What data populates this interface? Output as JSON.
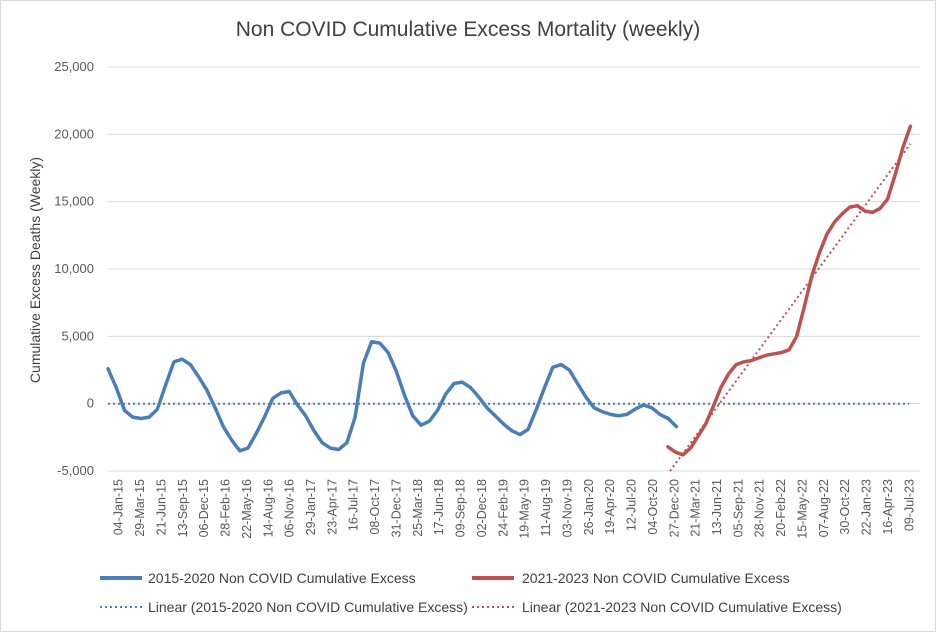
{
  "chart_data": {
    "type": "line",
    "title": "Non COVID Cumulative Excess Mortality  (weekly)",
    "xlabel": "",
    "ylabel": "Cumulative Excess Deaths (Weekly)",
    "ylim": [
      -5000,
      25000
    ],
    "y_ticks": [
      "25,000",
      "20,000",
      "15,000",
      "10,000",
      "5,000",
      "0",
      "-5,000"
    ],
    "y_tick_values": [
      25000,
      20000,
      15000,
      10000,
      5000,
      0,
      -5000
    ],
    "x_ticks": [
      "04-Jan-15",
      "29-Mar-15",
      "21-Jun-15",
      "13-Sep-15",
      "06-Dec-15",
      "28-Feb-16",
      "22-May-16",
      "14-Aug-16",
      "06-Nov-16",
      "29-Jan-17",
      "23-Apr-17",
      "16-Jul-17",
      "08-Oct-17",
      "31-Dec-17",
      "25-Mar-18",
      "17-Jun-18",
      "09-Sep-18",
      "02-Dec-18",
      "24-Feb-19",
      "19-May-19",
      "11-Aug-19",
      "03-Nov-19",
      "26-Jan-20",
      "19-Apr-20",
      "12-Jul-20",
      "04-Oct-20",
      "27-Dec-20",
      "21-Mar-21",
      "13-Jun-21",
      "05-Sep-21",
      "28-Nov-21",
      "20-Feb-22",
      "15-May-22",
      "07-Aug-22",
      "30-Oct-22",
      "22-Jan-23",
      "16-Apr-23",
      "09-Jul-23"
    ],
    "grid": "horizontal",
    "legend": "bottom",
    "series": [
      {
        "name": "2015-2020 Non COVID Cumulative Excess",
        "color": "#4a7ebb",
        "style": "solid",
        "values": [
          2600,
          1200,
          -500,
          -1000,
          -1100,
          -1000,
          -400,
          1400,
          3100,
          3300,
          2900,
          2000,
          1000,
          -300,
          -1700,
          -2700,
          -3500,
          -3300,
          -2200,
          -1000,
          400,
          800,
          900,
          -100,
          -900,
          -2000,
          -2900,
          -3300,
          -3400,
          -2900,
          -1000,
          3000,
          4600,
          4500,
          3800,
          2400,
          600,
          -900,
          -1600,
          -1300,
          -500,
          700,
          1500,
          1600,
          1200,
          500,
          -300,
          -900,
          -1500,
          -2000,
          -2300,
          -1900,
          -400,
          1200,
          2700,
          2900,
          2500,
          1500,
          500,
          -300,
          -600,
          -800,
          -900,
          -800,
          -400,
          -100,
          -300,
          -800,
          -1100,
          -1700
        ]
      },
      {
        "name": "2021-2023 Non COVID Cumulative Excess",
        "color": "#c0504d",
        "style": "solid",
        "values": [
          -3200,
          -3600,
          -3800,
          -3300,
          -2400,
          -1500,
          -200,
          1200,
          2200,
          2900,
          3100,
          3200,
          3400,
          3600,
          3700,
          3800,
          4000,
          5000,
          7200,
          9500,
          11200,
          12600,
          13500,
          14100,
          14600,
          14700,
          14300,
          14200,
          14500,
          15200,
          17000,
          19000,
          20600
        ]
      },
      {
        "name": "Linear (2015-2020 Non COVID Cumulative Excess)",
        "color": "#4a7ebb",
        "style": "dotted",
        "values": [
          0,
          0
        ]
      },
      {
        "name": "Linear (2021-2023 Non COVID Cumulative Excess)",
        "color": "#c0504d",
        "style": "dotted",
        "values": [
          -5000,
          19300
        ]
      }
    ]
  }
}
